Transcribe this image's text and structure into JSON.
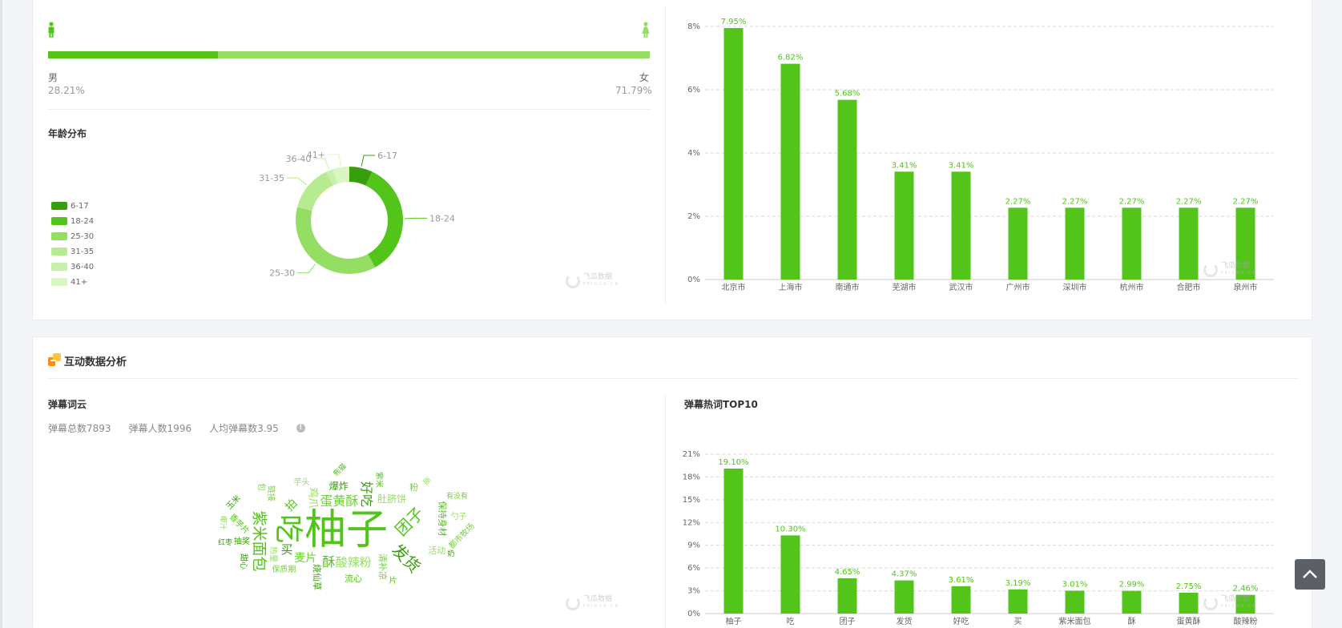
{
  "gender": {
    "male_label": "男",
    "female_label": "女",
    "male_pct": "28.21%",
    "female_pct": "71.79%",
    "male_share": 0.2821,
    "colors": {
      "male": "#52c41a",
      "female": "#95de64"
    }
  },
  "age": {
    "title": "年龄分布",
    "legend": [
      "6-17",
      "18-24",
      "25-30",
      "31-35",
      "36-40",
      "41+"
    ]
  },
  "interaction": {
    "title": "互动数据分析",
    "wordcloud_title": "弹幕词云",
    "stats": {
      "total": "弹幕总数7893",
      "users": "弹幕人数1996",
      "avg": "人均弹幕数3.95"
    },
    "info_glyph": "!",
    "top10_title": "弹幕热词TOP10",
    "words": [
      {
        "t": "柚子",
        "s": 52
      },
      {
        "t": "吃",
        "s": 36
      },
      {
        "t": "团子",
        "s": 20
      },
      {
        "t": "发货",
        "s": 20
      },
      {
        "t": "紫米面包",
        "s": 19
      },
      {
        "t": "蛋黄酥",
        "s": 16
      },
      {
        "t": "酸辣粉",
        "s": 15
      },
      {
        "t": "好吃",
        "s": 16
      },
      {
        "t": "酥",
        "s": 16
      },
      {
        "t": "麦片",
        "s": 14
      },
      {
        "t": "鸡爪",
        "s": 13
      },
      {
        "t": "买",
        "s": 15
      },
      {
        "t": "拍",
        "s": 14
      },
      {
        "t": "清补凉",
        "s": 11
      },
      {
        "t": "肚脐饼",
        "s": 12
      },
      {
        "t": "爆炸",
        "s": 12
      },
      {
        "t": "保持身材",
        "s": 11
      },
      {
        "t": "都市牧场",
        "s": 10
      },
      {
        "t": "活动",
        "s": 11
      },
      {
        "t": "烧仙草",
        "s": 11
      },
      {
        "t": "流心",
        "s": 11
      },
      {
        "t": "保质期",
        "s": 10
      },
      {
        "t": "热量",
        "s": 10
      },
      {
        "t": "抽奖",
        "s": 10
      },
      {
        "t": "香芋片",
        "s": 10
      },
      {
        "t": "链接",
        "s": 10
      },
      {
        "t": "芋头",
        "s": 10
      },
      {
        "t": "玉米",
        "s": 10
      },
      {
        "t": "紫米",
        "s": 10
      },
      {
        "t": "粉",
        "s": 11
      },
      {
        "t": "勺子",
        "s": 10
      },
      {
        "t": "甜心",
        "s": 10
      },
      {
        "t": "熊猫",
        "s": 9
      },
      {
        "t": "有没有",
        "s": 9
      },
      {
        "t": "椰汁",
        "s": 9
      },
      {
        "t": "红枣",
        "s": 9
      },
      {
        "t": "片",
        "s": 10
      },
      {
        "t": "包",
        "s": 10
      },
      {
        "t": "面",
        "s": 9
      },
      {
        "t": "奶",
        "s": 9
      }
    ]
  },
  "chart_data": [
    {
      "type": "pie",
      "title": "年龄分布",
      "donut": true,
      "labels": [
        "6-17",
        "18-24",
        "25-30",
        "31-35",
        "36-40",
        "41+"
      ],
      "values": [
        7.0,
        35.0,
        37.0,
        14.0,
        2.0,
        5.0
      ],
      "colors": [
        "#389e0d",
        "#52c41a",
        "#95de64",
        "#b7eb8f",
        "#c8f0ad",
        "#d9f7be"
      ]
    },
    {
      "type": "bar",
      "categories": [
        "北京市",
        "上海市",
        "南通市",
        "芜湖市",
        "武汉市",
        "广州市",
        "深圳市",
        "杭州市",
        "合肥市",
        "泉州市"
      ],
      "values": [
        7.95,
        6.82,
        5.68,
        3.41,
        3.41,
        2.27,
        2.27,
        2.27,
        2.27,
        2.27
      ],
      "labels": [
        "7.95%",
        "6.82%",
        "5.68%",
        "3.41%",
        "3.41%",
        "2.27%",
        "2.27%",
        "2.27%",
        "2.27%",
        "2.27%"
      ],
      "ylim": [
        0,
        8
      ],
      "yticks": [
        "0%",
        "2%",
        "4%",
        "6%",
        "8%"
      ],
      "grid": true,
      "color": "#52c41a"
    },
    {
      "type": "bar",
      "title": "弹幕热词TOP10",
      "categories": [
        "柚子",
        "吃",
        "团子",
        "发货",
        "好吃",
        "买",
        "紫米面包",
        "酥",
        "蛋黄酥",
        "酸辣粉"
      ],
      "values": [
        19.1,
        10.3,
        4.65,
        4.37,
        3.61,
        3.19,
        3.01,
        2.99,
        2.75,
        2.46
      ],
      "labels": [
        "19.10%",
        "10.30%",
        "4.65%",
        "4.37%",
        "3.61%",
        "3.19%",
        "3.01%",
        "2.99%",
        "2.75%",
        "2.46%"
      ],
      "ylim": [
        0,
        21
      ],
      "yticks": [
        "0%",
        "3%",
        "6%",
        "9%",
        "12%",
        "15%",
        "18%",
        "21%"
      ],
      "grid": true,
      "color": "#52c41a"
    }
  ],
  "watermark": {
    "cn": "飞瓜数据",
    "tag": "抖音版",
    "en": "FEIGUA.CN"
  }
}
